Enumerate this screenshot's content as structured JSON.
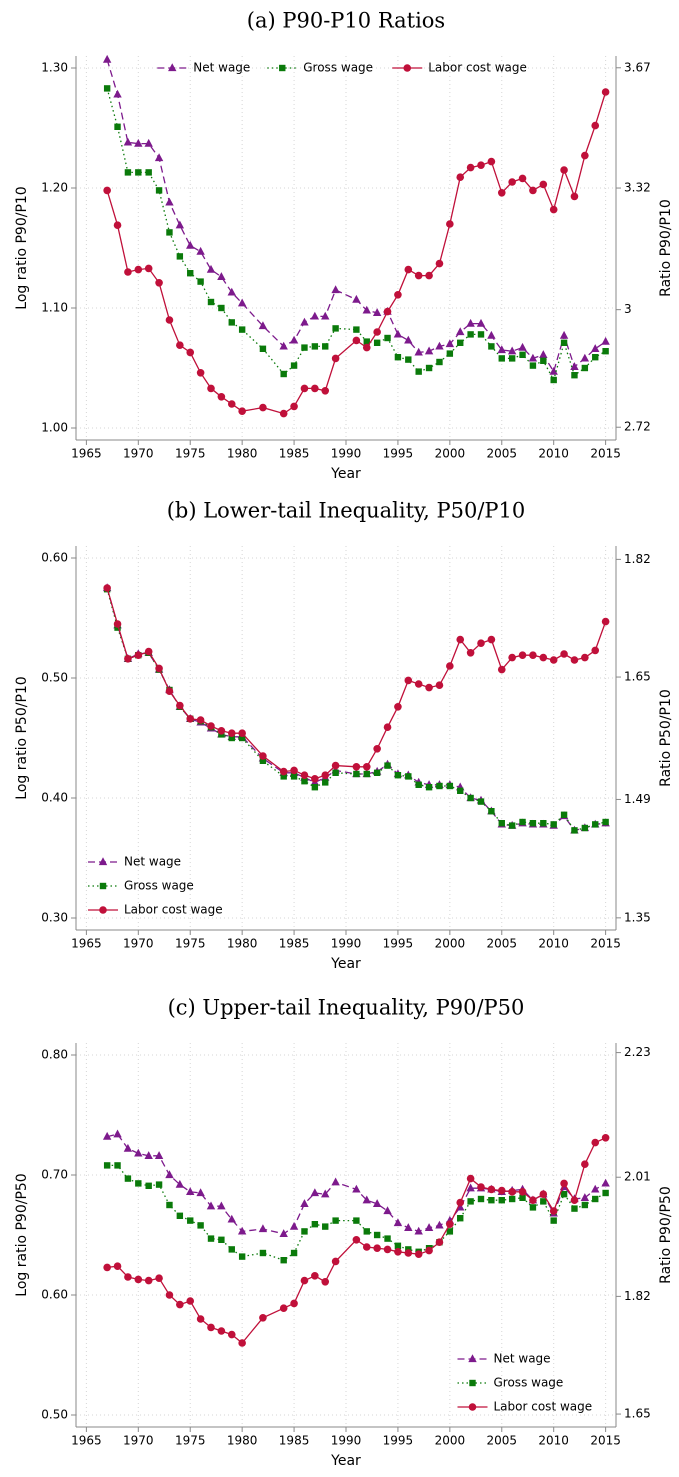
{
  "chart_data": [
    {
      "type": "line",
      "title": "(a) P90-P10 Ratios",
      "x_label": "Year",
      "y_label": "Log ratio P90/P10",
      "y2_label": "Ratio P90/P10",
      "x": [
        1967,
        1968,
        1969,
        1970,
        1971,
        1972,
        1973,
        1974,
        1975,
        1976,
        1977,
        1978,
        1979,
        1980,
        1982,
        1984,
        1985,
        1986,
        1987,
        1988,
        1989,
        1991,
        1992,
        1993,
        1994,
        1995,
        1996,
        1997,
        1998,
        1999,
        2000,
        2001,
        2002,
        2003,
        2004,
        2005,
        2006,
        2007,
        2008,
        2009,
        2010,
        2011,
        2012,
        2013,
        2014,
        2015
      ],
      "xlim": [
        1964,
        2016
      ],
      "xticks": [
        1965,
        1970,
        1975,
        1980,
        1985,
        1990,
        1995,
        2000,
        2005,
        2010,
        2015
      ],
      "ylim": [
        0.99,
        1.31
      ],
      "yticks": [
        {
          "value": 1,
          "label": "1.00"
        },
        {
          "value": 1.1,
          "label": "1.10"
        },
        {
          "value": 1.2,
          "label": "1.20"
        },
        {
          "value": 1.3,
          "label": "1.30"
        }
      ],
      "y2lim": [
        2.6912,
        3.7062
      ],
      "y2scale": "log",
      "y2ticks": [
        2.72,
        3,
        3.32,
        3.67
      ],
      "grid": true,
      "legend": "top",
      "series": [
        {
          "name": "Net wage",
          "color": "#7d1a8c",
          "marker": "triangle",
          "line_style": "dashed",
          "values": [
            1.307,
            1.278,
            1.238,
            1.237,
            1.237,
            1.225,
            1.188,
            1.169,
            1.152,
            1.147,
            1.132,
            1.126,
            1.113,
            1.104,
            1.085,
            1.068,
            1.073,
            1.088,
            1.093,
            1.093,
            1.115,
            1.107,
            1.098,
            1.096,
            1.097,
            1.078,
            1.073,
            1.063,
            1.064,
            1.068,
            1.07,
            1.08,
            1.087,
            1.087,
            1.077,
            1.065,
            1.064,
            1.067,
            1.058,
            1.061,
            1.047,
            1.077,
            1.051,
            1.058,
            1.066,
            1.072
          ]
        },
        {
          "name": "Gross wage",
          "color": "#0a7a0a",
          "marker": "square",
          "line_style": "dotted",
          "values": [
            1.283,
            1.251,
            1.213,
            1.213,
            1.213,
            1.198,
            1.163,
            1.143,
            1.129,
            1.122,
            1.105,
            1.1,
            1.088,
            1.082,
            1.066,
            1.045,
            1.052,
            1.067,
            1.068,
            1.068,
            1.083,
            1.082,
            1.072,
            1.071,
            1.075,
            1.059,
            1.057,
            1.047,
            1.05,
            1.055,
            1.062,
            1.071,
            1.078,
            1.078,
            1.068,
            1.058,
            1.058,
            1.061,
            1.052,
            1.056,
            1.04,
            1.071,
            1.044,
            1.05,
            1.059,
            1.064
          ]
        },
        {
          "name": "Labor cost wage",
          "color": "#c0103a",
          "marker": "circle",
          "line_style": "solid",
          "values": [
            1.198,
            1.169,
            1.13,
            1.132,
            1.133,
            1.121,
            1.09,
            1.069,
            1.063,
            1.046,
            1.033,
            1.026,
            1.02,
            1.014,
            1.017,
            1.012,
            1.018,
            1.033,
            1.033,
            1.031,
            1.058,
            1.073,
            1.067,
            1.08,
            1.097,
            1.111,
            1.132,
            1.127,
            1.127,
            1.137,
            1.17,
            1.209,
            1.217,
            1.219,
            1.222,
            1.196,
            1.205,
            1.208,
            1.198,
            1.203,
            1.182,
            1.215,
            1.193,
            1.227,
            1.252,
            1.28
          ]
        }
      ]
    },
    {
      "type": "line",
      "title": "(b) Lower-tail Inequality, P50/P10",
      "x_label": "Year",
      "y_label": "Log ratio P50/P10",
      "y2_label": "Ratio P50/P10",
      "x": [
        1967,
        1968,
        1969,
        1970,
        1971,
        1972,
        1973,
        1974,
        1975,
        1976,
        1977,
        1978,
        1979,
        1980,
        1982,
        1984,
        1985,
        1986,
        1987,
        1988,
        1989,
        1991,
        1992,
        1993,
        1994,
        1995,
        1996,
        1997,
        1998,
        1999,
        2000,
        2001,
        2002,
        2003,
        2004,
        2005,
        2006,
        2007,
        2008,
        2009,
        2010,
        2011,
        2012,
        2013,
        2014,
        2015
      ],
      "xlim": [
        1964,
        2016
      ],
      "xticks": [
        1965,
        1970,
        1975,
        1980,
        1985,
        1990,
        1995,
        2000,
        2005,
        2010,
        2015
      ],
      "ylim": [
        0.29,
        0.61
      ],
      "yticks": [
        {
          "value": 0.3,
          "label": "0.30"
        },
        {
          "value": 0.4,
          "label": "0.40"
        },
        {
          "value": 0.5,
          "label": "0.50"
        },
        {
          "value": 0.6,
          "label": "0.60"
        }
      ],
      "y2lim": [
        1.3364,
        1.8404
      ],
      "y2scale": "log",
      "y2ticks": [
        1.35,
        1.49,
        1.65,
        1.82
      ],
      "grid": true,
      "legend": "lower left",
      "series": [
        {
          "name": "Net wage",
          "color": "#7d1a8c",
          "marker": "triangle",
          "line_style": "dashed",
          "values": [
            0.575,
            0.544,
            0.516,
            0.52,
            0.521,
            0.507,
            0.49,
            0.476,
            0.466,
            0.463,
            0.458,
            0.453,
            0.451,
            0.451,
            0.433,
            0.421,
            0.421,
            0.417,
            0.413,
            0.417,
            0.423,
            0.42,
            0.42,
            0.422,
            0.428,
            0.42,
            0.419,
            0.413,
            0.411,
            0.411,
            0.411,
            0.409,
            0.4,
            0.398,
            0.389,
            0.378,
            0.377,
            0.379,
            0.378,
            0.378,
            0.377,
            0.385,
            0.373,
            0.375,
            0.378,
            0.379
          ]
        },
        {
          "name": "Gross wage",
          "color": "#0a7a0a",
          "marker": "square",
          "line_style": "dotted",
          "values": [
            0.574,
            0.542,
            0.516,
            0.519,
            0.521,
            0.507,
            0.49,
            0.476,
            0.466,
            0.464,
            0.459,
            0.453,
            0.45,
            0.45,
            0.431,
            0.418,
            0.418,
            0.414,
            0.409,
            0.413,
            0.421,
            0.42,
            0.42,
            0.421,
            0.427,
            0.419,
            0.418,
            0.411,
            0.409,
            0.41,
            0.41,
            0.406,
            0.4,
            0.397,
            0.389,
            0.379,
            0.377,
            0.38,
            0.379,
            0.379,
            0.378,
            0.386,
            0.373,
            0.375,
            0.378,
            0.38
          ]
        },
        {
          "name": "Labor cost wage",
          "color": "#c0103a",
          "marker": "circle",
          "line_style": "solid",
          "values": [
            0.575,
            0.545,
            0.516,
            0.519,
            0.522,
            0.508,
            0.489,
            0.477,
            0.466,
            0.465,
            0.46,
            0.456,
            0.454,
            0.454,
            0.435,
            0.422,
            0.423,
            0.419,
            0.416,
            0.419,
            0.427,
            0.426,
            0.426,
            0.441,
            0.459,
            0.476,
            0.498,
            0.495,
            0.492,
            0.494,
            0.51,
            0.532,
            0.521,
            0.529,
            0.532,
            0.507,
            0.517,
            0.519,
            0.519,
            0.517,
            0.515,
            0.52,
            0.515,
            0.517,
            0.523,
            0.547
          ]
        }
      ]
    },
    {
      "type": "line",
      "title": "(c) Upper-tail Inequality, P90/P50",
      "x_label": "Year",
      "y_label": "Log ratio P90/P50",
      "y2_label": "Ratio P90/P50",
      "x": [
        1967,
        1968,
        1969,
        1970,
        1971,
        1972,
        1973,
        1974,
        1975,
        1976,
        1977,
        1978,
        1979,
        1980,
        1982,
        1984,
        1985,
        1986,
        1987,
        1988,
        1989,
        1991,
        1992,
        1993,
        1994,
        1995,
        1996,
        1997,
        1998,
        1999,
        2000,
        2001,
        2002,
        2003,
        2004,
        2005,
        2006,
        2007,
        2008,
        2009,
        2010,
        2011,
        2012,
        2013,
        2014,
        2015
      ],
      "xlim": [
        1964,
        2016
      ],
      "xticks": [
        1965,
        1970,
        1975,
        1980,
        1985,
        1990,
        1995,
        2000,
        2005,
        2010,
        2015
      ],
      "ylim": [
        0.49,
        0.81
      ],
      "yticks": [
        {
          "value": 0.5,
          "label": "0.50"
        },
        {
          "value": 0.6,
          "label": "0.60"
        },
        {
          "value": 0.7,
          "label": "0.70"
        },
        {
          "value": 0.8,
          "label": "0.80"
        }
      ],
      "y2lim": [
        1.6323,
        2.2479
      ],
      "y2scale": "log",
      "y2ticks": [
        1.65,
        1.82,
        2.01,
        2.23
      ],
      "grid": true,
      "legend": "lower right",
      "series": [
        {
          "name": "Net wage",
          "color": "#7d1a8c",
          "marker": "triangle",
          "line_style": "dashed",
          "values": [
            0.732,
            0.734,
            0.722,
            0.718,
            0.716,
            0.716,
            0.7,
            0.692,
            0.686,
            0.685,
            0.674,
            0.674,
            0.663,
            0.653,
            0.655,
            0.651,
            0.657,
            0.676,
            0.685,
            0.684,
            0.694,
            0.688,
            0.679,
            0.676,
            0.67,
            0.66,
            0.656,
            0.653,
            0.656,
            0.658,
            0.662,
            0.673,
            0.689,
            0.689,
            0.688,
            0.686,
            0.687,
            0.688,
            0.679,
            0.684,
            0.668,
            0.69,
            0.68,
            0.681,
            0.688,
            0.693
          ]
        },
        {
          "name": "Gross wage",
          "color": "#0a7a0a",
          "marker": "square",
          "line_style": "dotted",
          "values": [
            0.708,
            0.708,
            0.697,
            0.693,
            0.691,
            0.692,
            0.675,
            0.666,
            0.662,
            0.658,
            0.647,
            0.646,
            0.638,
            0.632,
            0.635,
            0.629,
            0.635,
            0.653,
            0.659,
            0.657,
            0.662,
            0.662,
            0.653,
            0.65,
            0.647,
            0.641,
            0.638,
            0.636,
            0.639,
            0.644,
            0.653,
            0.664,
            0.678,
            0.68,
            0.679,
            0.679,
            0.68,
            0.681,
            0.673,
            0.678,
            0.662,
            0.684,
            0.672,
            0.675,
            0.68,
            0.685
          ]
        },
        {
          "name": "Labor cost wage",
          "color": "#c0103a",
          "marker": "circle",
          "line_style": "solid",
          "values": [
            0.623,
            0.624,
            0.615,
            0.613,
            0.612,
            0.614,
            0.6,
            0.592,
            0.595,
            0.58,
            0.573,
            0.57,
            0.567,
            0.56,
            0.581,
            0.589,
            0.593,
            0.612,
            0.616,
            0.611,
            0.628,
            0.646,
            0.64,
            0.639,
            0.638,
            0.636,
            0.635,
            0.634,
            0.637,
            0.644,
            0.659,
            0.677,
            0.697,
            0.69,
            0.688,
            0.687,
            0.686,
            0.686,
            0.679,
            0.684,
            0.67,
            0.693,
            0.679,
            0.709,
            0.727,
            0.731
          ]
        }
      ]
    }
  ]
}
